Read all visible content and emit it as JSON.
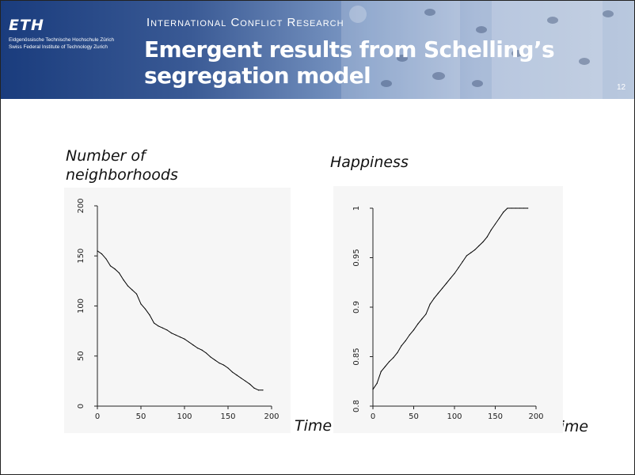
{
  "header": {
    "logo_text": "ETH",
    "institution_line1": "Eidgenössische Technische Hochschule Zürich",
    "institution_line2": "Swiss Federal Institute of Technology Zurich",
    "section": "International Conflict Research",
    "title": "Emergent results from Schelling’s segregation model",
    "slide_number": "12",
    "banner_colors": [
      "#1a3c7d",
      "#7f9bc6",
      "#b9c8de"
    ]
  },
  "labels": {
    "left_ylabel": "Number of neighborhoods",
    "right_ylabel": "Happiness",
    "left_xlabel": "Time",
    "right_xlabel": "Time"
  },
  "chart_data": [
    {
      "type": "line",
      "ylabel": "Number of neighborhoods",
      "xlabel": "Time",
      "xlim": [
        0,
        200
      ],
      "ylim": [
        0,
        200
      ],
      "xticks": [
        "0",
        "50",
        "100",
        "150",
        "200"
      ],
      "yticks": [
        "0",
        "50",
        "100",
        "150",
        "200"
      ],
      "color": "#000000",
      "x": [
        0,
        5,
        10,
        15,
        20,
        25,
        30,
        35,
        40,
        45,
        50,
        55,
        60,
        65,
        70,
        75,
        80,
        85,
        90,
        95,
        100,
        105,
        110,
        115,
        120,
        125,
        130,
        135,
        140,
        145,
        150,
        155,
        160,
        165,
        170,
        175,
        180,
        185,
        190
      ],
      "y": [
        155,
        152,
        147,
        140,
        137,
        133,
        126,
        120,
        116,
        112,
        102,
        97,
        91,
        83,
        80,
        78,
        76,
        73,
        71,
        69,
        67,
        64,
        61,
        58,
        56,
        53,
        49,
        46,
        43,
        41,
        38,
        34,
        31,
        28,
        25,
        22,
        18,
        16,
        16
      ]
    },
    {
      "type": "line",
      "ylabel": "Happiness",
      "xlabel": "Time",
      "xlim": [
        0,
        200
      ],
      "ylim": [
        0.8,
        1.0
      ],
      "xticks": [
        "0",
        "50",
        "100",
        "150",
        "200"
      ],
      "yticks": [
        "0.8",
        "0.85",
        "0.9",
        "0.95",
        "1"
      ],
      "color": "#000000",
      "x": [
        0,
        5,
        10,
        15,
        20,
        25,
        30,
        35,
        40,
        45,
        50,
        55,
        60,
        65,
        70,
        75,
        80,
        85,
        90,
        95,
        100,
        105,
        110,
        115,
        120,
        125,
        130,
        135,
        140,
        145,
        150,
        155,
        160,
        165,
        170,
        175,
        180,
        185,
        190
      ],
      "y": [
        0.817,
        0.823,
        0.835,
        0.84,
        0.845,
        0.849,
        0.854,
        0.861,
        0.866,
        0.872,
        0.877,
        0.883,
        0.888,
        0.893,
        0.903,
        0.909,
        0.914,
        0.919,
        0.924,
        0.929,
        0.934,
        0.94,
        0.946,
        0.952,
        0.955,
        0.958,
        0.962,
        0.966,
        0.971,
        0.978,
        0.984,
        0.99,
        0.996,
        1.0,
        1.0,
        1.0,
        1.0,
        1.0,
        1.0
      ]
    }
  ]
}
